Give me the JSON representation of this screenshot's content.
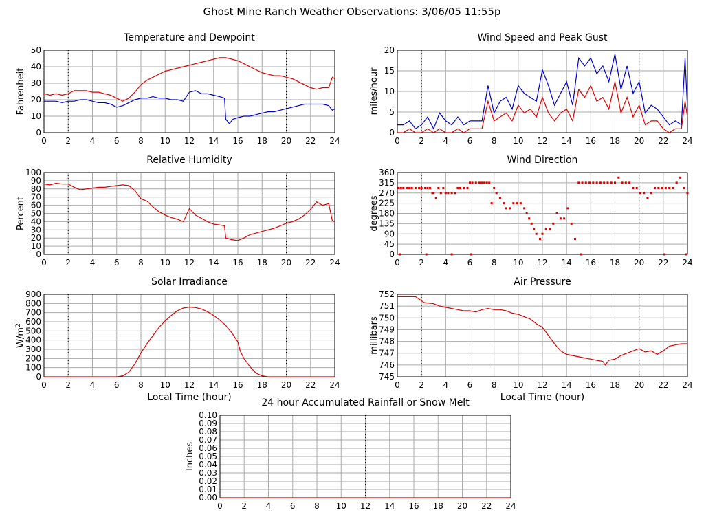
{
  "page": {
    "title": "Ghost Mine Ranch Weather Observations: 3/06/05 11:55p",
    "x_axis_title": "Local Time (hour)",
    "x_ticks": [
      "0",
      "2",
      "4",
      "6",
      "8",
      "10",
      "12",
      "14",
      "16",
      "18",
      "20",
      "22",
      "24"
    ]
  },
  "colors": {
    "red": "#dd0000",
    "blue": "#0000cc",
    "grid": "#aaaaaa",
    "frame": "#000000"
  },
  "chart_data": [
    {
      "id": "temperature",
      "type": "line",
      "title": "Temperature and Dewpoint",
      "ylabel": "Fahrenheit",
      "xlim": [
        0,
        24
      ],
      "ylim": [
        0,
        55
      ],
      "yticks": [
        "0",
        "10",
        "20",
        "30",
        "40",
        "50"
      ],
      "grid": true,
      "series": [
        {
          "color": "#dd0000",
          "x": [
            0,
            0.5,
            1,
            1.5,
            2,
            2.5,
            3,
            3.5,
            4,
            4.5,
            5,
            5.5,
            6,
            6.5,
            7,
            7.5,
            8,
            8.5,
            9,
            9.5,
            10,
            10.5,
            11,
            11.5,
            12,
            12.5,
            13,
            13.5,
            14,
            14.5,
            15,
            15.5,
            16,
            16.5,
            17,
            17.5,
            18,
            18.5,
            19,
            19.5,
            20,
            20.5,
            21,
            21.5,
            22,
            22.5,
            23,
            23.5,
            23.8,
            24
          ],
          "values": [
            26,
            25,
            26,
            25,
            26,
            28,
            28,
            28,
            27,
            27,
            26,
            25,
            23,
            21,
            23,
            27,
            32,
            35,
            37,
            39,
            41,
            42,
            43,
            44,
            45,
            46,
            47,
            48,
            49,
            50,
            50,
            49,
            48,
            46,
            44,
            42,
            40,
            39,
            38,
            38,
            37,
            36,
            34,
            32,
            30,
            29,
            30,
            30,
            37,
            36
          ]
        },
        {
          "color": "#0000cc",
          "x": [
            0,
            0.5,
            1,
            1.5,
            2,
            2.5,
            3,
            3.5,
            4,
            4.5,
            5,
            5.5,
            6,
            6.5,
            7,
            7.5,
            8,
            8.5,
            9,
            9.5,
            10,
            10.5,
            11,
            11.5,
            12,
            12.5,
            13,
            13.5,
            14,
            14.5,
            14.9,
            15,
            15.3,
            15.6,
            16,
            16.5,
            17,
            17.5,
            18,
            18.5,
            19,
            19.5,
            20,
            20.5,
            21,
            21.5,
            22,
            22.5,
            23,
            23.5,
            23.8,
            24
          ],
          "values": [
            21,
            21,
            21,
            20,
            21,
            21,
            22,
            22,
            21,
            20,
            20,
            19,
            17,
            18,
            20,
            22,
            23,
            23,
            24,
            23,
            23,
            22,
            22,
            21,
            27,
            28,
            26,
            26,
            25,
            24,
            23,
            9,
            6,
            9,
            10,
            11,
            11,
            12,
            13,
            14,
            14,
            15,
            16,
            17,
            18,
            19,
            19,
            19,
            19,
            18,
            15,
            16
          ]
        }
      ]
    },
    {
      "id": "wind_speed",
      "type": "line",
      "title": "Wind Speed and Peak Gust",
      "ylabel": "miles/hour",
      "xlim": [
        0,
        24
      ],
      "ylim": [
        0,
        21
      ],
      "yticks": [
        "0",
        "5",
        "10",
        "15",
        "20"
      ],
      "grid": true,
      "series": [
        {
          "color": "#0000cc",
          "x": [
            0,
            0.5,
            1,
            1.5,
            2,
            2.5,
            3,
            3.5,
            4,
            4.5,
            5,
            5.5,
            6,
            6.5,
            7,
            7.5,
            8,
            8.5,
            9,
            9.5,
            10,
            10.5,
            11,
            11.5,
            12,
            12.5,
            13,
            13.5,
            14,
            14.5,
            15,
            15.5,
            16,
            16.5,
            17,
            17.5,
            18,
            18.5,
            19,
            19.5,
            20,
            20.5,
            21,
            21.5,
            22,
            22.5,
            23,
            23.5,
            23.8,
            24
          ],
          "values": [
            2,
            2,
            3,
            1,
            2,
            4,
            1,
            5,
            3,
            2,
            4,
            2,
            3,
            3,
            3,
            12,
            5,
            8,
            9,
            6,
            12,
            10,
            9,
            8,
            16,
            12,
            7,
            10,
            13,
            7,
            19,
            17,
            19,
            15,
            17,
            13,
            20,
            11,
            17,
            10,
            13,
            5,
            7,
            6,
            4,
            2,
            3,
            2,
            19,
            6
          ]
        },
        {
          "color": "#dd0000",
          "x": [
            0,
            0.5,
            1,
            1.5,
            2,
            2.5,
            3,
            3.5,
            4,
            4.5,
            5,
            5.5,
            6,
            6.5,
            7,
            7.5,
            8,
            8.5,
            9,
            9.5,
            10,
            10.5,
            11,
            11.5,
            12,
            12.5,
            13,
            13.5,
            14,
            14.5,
            15,
            15.5,
            16,
            16.5,
            17,
            17.5,
            18,
            18.5,
            19,
            19.5,
            20,
            20.5,
            21,
            21.5,
            22,
            22.5,
            23,
            23.5,
            23.8,
            24
          ],
          "values": [
            0,
            0,
            1,
            0,
            0,
            1,
            0,
            1,
            0,
            0,
            1,
            0,
            1,
            1,
            1,
            8,
            3,
            4,
            5,
            3,
            7,
            5,
            6,
            4,
            9,
            5,
            3,
            5,
            6,
            3,
            11,
            9,
            12,
            8,
            9,
            6,
            13,
            5,
            9,
            4,
            7,
            2,
            3,
            3,
            1,
            0,
            1,
            1,
            8,
            4
          ]
        }
      ]
    },
    {
      "id": "humidity",
      "type": "line",
      "title": "Relative Humidity",
      "ylabel": "Percent",
      "xlim": [
        0,
        24
      ],
      "ylim": [
        0,
        100
      ],
      "yticks": [
        "0",
        "10",
        "20",
        "30",
        "40",
        "50",
        "60",
        "70",
        "80",
        "90",
        "100"
      ],
      "grid": true,
      "series": [
        {
          "color": "#dd0000",
          "x": [
            0,
            0.5,
            1,
            1.5,
            2,
            2.5,
            3,
            3.5,
            4,
            4.5,
            5,
            5.5,
            6,
            6.5,
            7,
            7.5,
            8,
            8.5,
            9,
            9.5,
            10,
            10.5,
            11,
            11.5,
            12,
            12.5,
            13,
            13.5,
            14,
            14.5,
            14.9,
            15,
            15.5,
            16,
            16.5,
            17,
            17.5,
            18,
            18.5,
            19,
            19.5,
            20,
            20.5,
            21,
            21.5,
            22,
            22.5,
            23,
            23.5,
            23.8,
            24
          ],
          "values": [
            86,
            85,
            87,
            86,
            86,
            82,
            79,
            80,
            81,
            82,
            82,
            83,
            84,
            85,
            84,
            78,
            68,
            65,
            58,
            52,
            48,
            45,
            43,
            40,
            56,
            48,
            44,
            40,
            37,
            36,
            35,
            20,
            18,
            17,
            20,
            24,
            26,
            28,
            30,
            32,
            35,
            38,
            40,
            43,
            48,
            55,
            64,
            60,
            62,
            41,
            40
          ]
        }
      ]
    },
    {
      "id": "wind_direction",
      "type": "scatter",
      "title": "Wind Direction",
      "ylabel": "degrees",
      "xlim": [
        0,
        24
      ],
      "ylim": [
        0,
        360
      ],
      "yticks": [
        "0",
        "45",
        "90",
        "135",
        "180",
        "225",
        "270",
        "315",
        "360"
      ],
      "grid": true,
      "series": [
        {
          "color": "#dd0000",
          "x": [
            0.1,
            0.3,
            0.5,
            0.8,
            1.0,
            1.2,
            1.5,
            1.8,
            2.0,
            2.3,
            2.5,
            2.7,
            2.9,
            3.0,
            3.2,
            3.4,
            3.6,
            3.8,
            4.0,
            4.2,
            4.5,
            4.8,
            5.0,
            5.2,
            5.5,
            5.8,
            6.0,
            6.2,
            6.5,
            6.8,
            7.0,
            7.2,
            7.4,
            7.6,
            7.8,
            8.0,
            8.2,
            8.5,
            8.8,
            9.0,
            9.3,
            9.6,
            9.9,
            10.2,
            10.5,
            10.7,
            10.9,
            11.1,
            11.3,
            11.5,
            11.8,
            12.0,
            12.3,
            12.6,
            12.9,
            13.2,
            13.5,
            13.8,
            14.1,
            14.4,
            14.7,
            15.0,
            15.3,
            15.6,
            15.9,
            16.2,
            16.5,
            16.8,
            17.1,
            17.4,
            17.7,
            18.0,
            18.3,
            18.6,
            18.9,
            19.2,
            19.5,
            19.8,
            20.1,
            20.4,
            20.7,
            21.0,
            21.3,
            21.6,
            21.9,
            22.2,
            22.5,
            22.8,
            23.1,
            23.4,
            23.7,
            24.0,
            0.2,
            2.4,
            4.5,
            6.1,
            15.2,
            22.1,
            23.9
          ],
          "values": [
            292,
            292,
            292,
            292,
            292,
            292,
            292,
            292,
            292,
            292,
            292,
            292,
            270,
            270,
            248,
            292,
            270,
            292,
            270,
            270,
            270,
            270,
            292,
            292,
            292,
            292,
            315,
            315,
            315,
            315,
            315,
            315,
            315,
            315,
            225,
            292,
            270,
            248,
            225,
            203,
            203,
            225,
            225,
            225,
            203,
            180,
            158,
            135,
            112,
            90,
            68,
            90,
            112,
            112,
            135,
            180,
            158,
            158,
            203,
            135,
            68,
            315,
            315,
            315,
            315,
            315,
            315,
            315,
            315,
            315,
            315,
            315,
            338,
            315,
            315,
            315,
            292,
            292,
            270,
            270,
            248,
            270,
            292,
            292,
            292,
            292,
            292,
            292,
            315,
            338,
            292,
            270,
            0,
            0,
            0,
            0,
            0,
            0,
            0
          ]
        }
      ]
    },
    {
      "id": "solar",
      "type": "line",
      "title": "Solar Irradiance",
      "ylabel": "W/m",
      "ylabel_superscript": "2",
      "xlabel": "Local Time (hour)",
      "xlim": [
        0,
        24
      ],
      "ylim": [
        0,
        900
      ],
      "yticks": [
        "0",
        "100",
        "200",
        "300",
        "400",
        "500",
        "600",
        "700",
        "800",
        "900"
      ],
      "grid": true,
      "series": [
        {
          "color": "#dd0000",
          "x": [
            0,
            1,
            2,
            3,
            4,
            5,
            6,
            6.5,
            7,
            7.5,
            8,
            8.5,
            9,
            9.5,
            10,
            10.5,
            11,
            11.5,
            12,
            12.5,
            13,
            13.5,
            14,
            14.5,
            15,
            15.5,
            16,
            16.2,
            16.5,
            17,
            17.5,
            18,
            18.5,
            19,
            20,
            21,
            22,
            23,
            24
          ],
          "values": [
            0,
            0,
            0,
            0,
            0,
            0,
            0,
            10,
            50,
            140,
            260,
            360,
            450,
            540,
            610,
            670,
            720,
            750,
            760,
            755,
            740,
            710,
            670,
            620,
            560,
            480,
            380,
            280,
            200,
            110,
            40,
            10,
            0,
            0,
            0,
            0,
            0,
            0,
            0
          ]
        }
      ]
    },
    {
      "id": "pressure",
      "type": "line",
      "title": "Air Pressure",
      "ylabel": "millibars",
      "xlabel": "Local Time (hour)",
      "xlim": [
        0,
        24
      ],
      "ylim": [
        745,
        752
      ],
      "yticks": [
        "745",
        "746",
        "747",
        "748",
        "749",
        "750",
        "751",
        "752"
      ],
      "grid": true,
      "series": [
        {
          "color": "#dd0000",
          "x": [
            0,
            0.5,
            1,
            1.5,
            1.8,
            2.2,
            3,
            3.5,
            4,
            4.5,
            5,
            5.5,
            6,
            6.5,
            7,
            7.5,
            8,
            8.5,
            9,
            9.5,
            10,
            10.5,
            11,
            11.5,
            12,
            12.5,
            13,
            13.5,
            14,
            14.5,
            15,
            15.5,
            16,
            16.5,
            17,
            17.2,
            17.5,
            18,
            18.5,
            19,
            19.5,
            20,
            20.5,
            21,
            21.5,
            22,
            22.5,
            23,
            23.5,
            24
          ],
          "values": [
            751.8,
            751.8,
            751.8,
            751.8,
            751.6,
            751.3,
            751.2,
            751.0,
            750.9,
            750.8,
            750.7,
            750.6,
            750.6,
            750.5,
            750.7,
            750.8,
            750.7,
            750.7,
            750.6,
            750.4,
            750.3,
            750.1,
            749.9,
            749.5,
            749.2,
            748.5,
            747.8,
            747.2,
            746.9,
            746.8,
            746.7,
            746.6,
            746.5,
            746.4,
            746.3,
            746.0,
            746.4,
            746.5,
            746.8,
            747.0,
            747.2,
            747.4,
            747.1,
            747.2,
            746.9,
            747.2,
            747.6,
            747.7,
            747.8,
            747.8
          ]
        }
      ]
    },
    {
      "id": "rainfall",
      "type": "line",
      "title": "24 hour Accumulated Rainfall or Snow Melt",
      "ylabel": "Inches",
      "xlim": [
        0,
        24
      ],
      "ylim": [
        0,
        0.1
      ],
      "yticks": [
        "0.00",
        "0.01",
        "0.02",
        "0.03",
        "0.04",
        "0.05",
        "0.06",
        "0.07",
        "0.08",
        "0.09",
        "0.10"
      ],
      "grid": true,
      "series": [
        {
          "color": "#dd0000",
          "x": [
            0,
            24
          ],
          "values": [
            0,
            0
          ]
        }
      ]
    }
  ]
}
